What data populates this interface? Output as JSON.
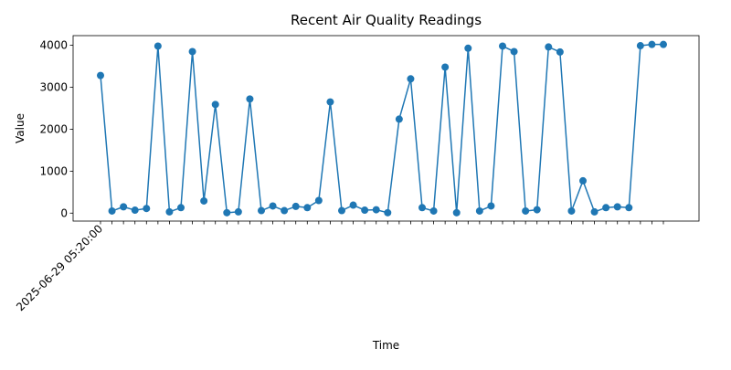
{
  "chart_data": {
    "type": "line",
    "title": "Recent Air Quality Readings",
    "xlabel": "Time",
    "ylabel": "Value",
    "ylim": [
      -190,
      4230
    ],
    "y_ticks": [
      0,
      1000,
      2000,
      3000,
      4000
    ],
    "grid": false,
    "legend": "none",
    "x_tick_rotation_deg": 45,
    "line_color": "#1f77b4",
    "marker_color": "#1f77b4",
    "marker": "circle",
    "x": [
      "2025-06-29 05:20:00",
      "",
      "",
      "",
      "",
      "",
      "",
      "",
      "",
      "",
      "",
      "",
      "",
      "",
      "",
      "",
      "",
      "",
      "",
      "",
      "",
      "",
      "",
      "",
      "",
      "",
      "",
      "",
      "",
      "",
      "",
      "",
      "",
      "",
      "",
      "",
      "",
      "",
      "",
      "",
      "",
      "",
      "",
      "",
      "",
      "",
      "",
      "",
      "",
      ""
    ],
    "values": [
      3280,
      50,
      150,
      70,
      110,
      3980,
      30,
      130,
      3850,
      290,
      2590,
      10,
      30,
      2720,
      60,
      170,
      60,
      160,
      130,
      300,
      2650,
      60,
      190,
      70,
      80,
      10,
      2240,
      3200,
      130,
      50,
      3480,
      10,
      3930,
      50,
      170,
      3980,
      3850,
      50,
      80,
      3960,
      3840,
      50,
      770,
      30,
      130,
      150,
      130,
      3990,
      4020,
      4020
    ]
  }
}
